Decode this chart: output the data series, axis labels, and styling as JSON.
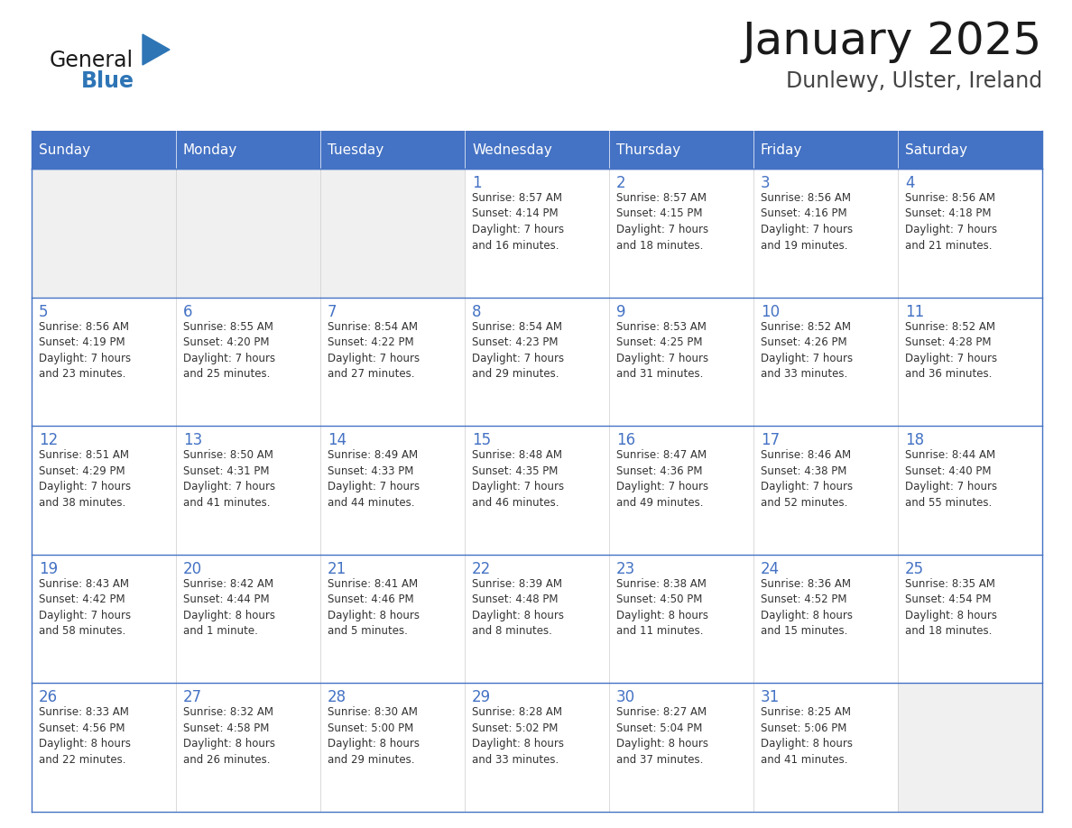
{
  "title": "January 2025",
  "subtitle": "Dunlewy, Ulster, Ireland",
  "days_of_week": [
    "Sunday",
    "Monday",
    "Tuesday",
    "Wednesday",
    "Thursday",
    "Friday",
    "Saturday"
  ],
  "header_bg": "#4472C4",
  "header_text": "#FFFFFF",
  "cell_bg_empty": "#F0F0F0",
  "cell_bg_filled": "#FFFFFF",
  "border_color": "#4472C4",
  "separator_color": "#4472C4",
  "day_num_color": "#4472C4",
  "text_color": "#333333",
  "logo_general_color": "#1a1a1a",
  "logo_blue_color": "#2E75B6",
  "weeks": [
    [
      {
        "day": null,
        "info": null
      },
      {
        "day": null,
        "info": null
      },
      {
        "day": null,
        "info": null
      },
      {
        "day": 1,
        "info": "Sunrise: 8:57 AM\nSunset: 4:14 PM\nDaylight: 7 hours\nand 16 minutes."
      },
      {
        "day": 2,
        "info": "Sunrise: 8:57 AM\nSunset: 4:15 PM\nDaylight: 7 hours\nand 18 minutes."
      },
      {
        "day": 3,
        "info": "Sunrise: 8:56 AM\nSunset: 4:16 PM\nDaylight: 7 hours\nand 19 minutes."
      },
      {
        "day": 4,
        "info": "Sunrise: 8:56 AM\nSunset: 4:18 PM\nDaylight: 7 hours\nand 21 minutes."
      }
    ],
    [
      {
        "day": 5,
        "info": "Sunrise: 8:56 AM\nSunset: 4:19 PM\nDaylight: 7 hours\nand 23 minutes."
      },
      {
        "day": 6,
        "info": "Sunrise: 8:55 AM\nSunset: 4:20 PM\nDaylight: 7 hours\nand 25 minutes."
      },
      {
        "day": 7,
        "info": "Sunrise: 8:54 AM\nSunset: 4:22 PM\nDaylight: 7 hours\nand 27 minutes."
      },
      {
        "day": 8,
        "info": "Sunrise: 8:54 AM\nSunset: 4:23 PM\nDaylight: 7 hours\nand 29 minutes."
      },
      {
        "day": 9,
        "info": "Sunrise: 8:53 AM\nSunset: 4:25 PM\nDaylight: 7 hours\nand 31 minutes."
      },
      {
        "day": 10,
        "info": "Sunrise: 8:52 AM\nSunset: 4:26 PM\nDaylight: 7 hours\nand 33 minutes."
      },
      {
        "day": 11,
        "info": "Sunrise: 8:52 AM\nSunset: 4:28 PM\nDaylight: 7 hours\nand 36 minutes."
      }
    ],
    [
      {
        "day": 12,
        "info": "Sunrise: 8:51 AM\nSunset: 4:29 PM\nDaylight: 7 hours\nand 38 minutes."
      },
      {
        "day": 13,
        "info": "Sunrise: 8:50 AM\nSunset: 4:31 PM\nDaylight: 7 hours\nand 41 minutes."
      },
      {
        "day": 14,
        "info": "Sunrise: 8:49 AM\nSunset: 4:33 PM\nDaylight: 7 hours\nand 44 minutes."
      },
      {
        "day": 15,
        "info": "Sunrise: 8:48 AM\nSunset: 4:35 PM\nDaylight: 7 hours\nand 46 minutes."
      },
      {
        "day": 16,
        "info": "Sunrise: 8:47 AM\nSunset: 4:36 PM\nDaylight: 7 hours\nand 49 minutes."
      },
      {
        "day": 17,
        "info": "Sunrise: 8:46 AM\nSunset: 4:38 PM\nDaylight: 7 hours\nand 52 minutes."
      },
      {
        "day": 18,
        "info": "Sunrise: 8:44 AM\nSunset: 4:40 PM\nDaylight: 7 hours\nand 55 minutes."
      }
    ],
    [
      {
        "day": 19,
        "info": "Sunrise: 8:43 AM\nSunset: 4:42 PM\nDaylight: 7 hours\nand 58 minutes."
      },
      {
        "day": 20,
        "info": "Sunrise: 8:42 AM\nSunset: 4:44 PM\nDaylight: 8 hours\nand 1 minute."
      },
      {
        "day": 21,
        "info": "Sunrise: 8:41 AM\nSunset: 4:46 PM\nDaylight: 8 hours\nand 5 minutes."
      },
      {
        "day": 22,
        "info": "Sunrise: 8:39 AM\nSunset: 4:48 PM\nDaylight: 8 hours\nand 8 minutes."
      },
      {
        "day": 23,
        "info": "Sunrise: 8:38 AM\nSunset: 4:50 PM\nDaylight: 8 hours\nand 11 minutes."
      },
      {
        "day": 24,
        "info": "Sunrise: 8:36 AM\nSunset: 4:52 PM\nDaylight: 8 hours\nand 15 minutes."
      },
      {
        "day": 25,
        "info": "Sunrise: 8:35 AM\nSunset: 4:54 PM\nDaylight: 8 hours\nand 18 minutes."
      }
    ],
    [
      {
        "day": 26,
        "info": "Sunrise: 8:33 AM\nSunset: 4:56 PM\nDaylight: 8 hours\nand 22 minutes."
      },
      {
        "day": 27,
        "info": "Sunrise: 8:32 AM\nSunset: 4:58 PM\nDaylight: 8 hours\nand 26 minutes."
      },
      {
        "day": 28,
        "info": "Sunrise: 8:30 AM\nSunset: 5:00 PM\nDaylight: 8 hours\nand 29 minutes."
      },
      {
        "day": 29,
        "info": "Sunrise: 8:28 AM\nSunset: 5:02 PM\nDaylight: 8 hours\nand 33 minutes."
      },
      {
        "day": 30,
        "info": "Sunrise: 8:27 AM\nSunset: 5:04 PM\nDaylight: 8 hours\nand 37 minutes."
      },
      {
        "day": 31,
        "info": "Sunrise: 8:25 AM\nSunset: 5:06 PM\nDaylight: 8 hours\nand 41 minutes."
      },
      {
        "day": null,
        "info": null
      }
    ]
  ]
}
